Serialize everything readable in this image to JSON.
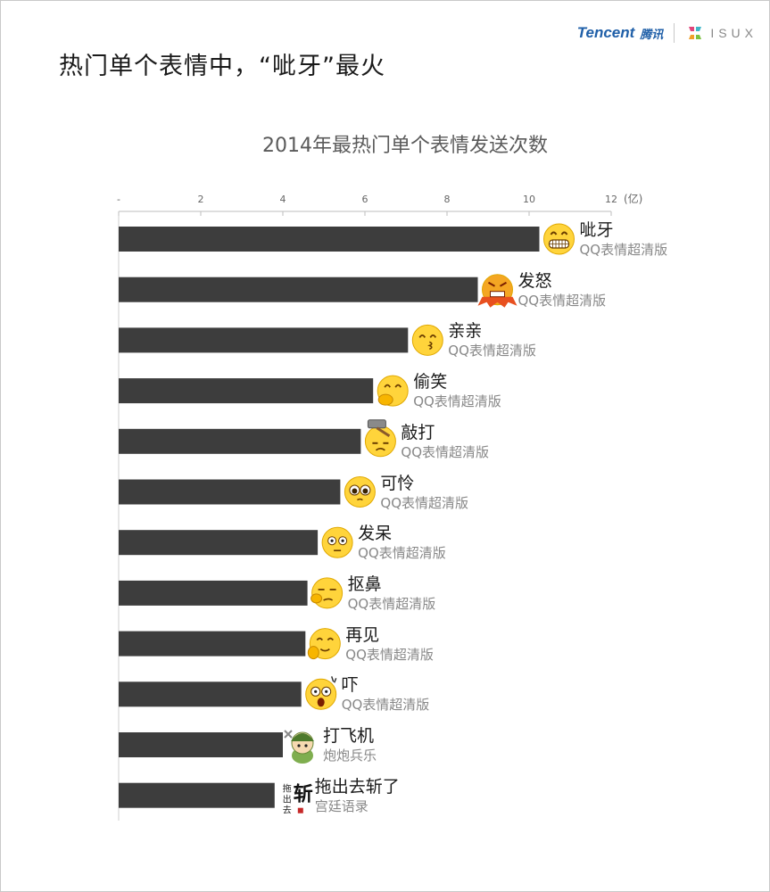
{
  "header": {
    "headline": "热门单个表情中，“呲牙”最火",
    "brand_tencent": "Tencent",
    "brand_tencent_cn": "腾讯",
    "brand_isux": "ISUX"
  },
  "chart_data": {
    "type": "bar",
    "orientation": "horizontal",
    "title": "2014年最热门单个表情发送次数",
    "unit": "(亿)",
    "xlim": [
      0,
      12
    ],
    "ticks": [
      "-",
      "2",
      "4",
      "6",
      "8",
      "10",
      "12"
    ],
    "grid": false,
    "bar_color": "#3d3d3d",
    "categories": [
      "呲牙",
      "发怒",
      "亲亲",
      "偷笑",
      "敲打",
      "可怜",
      "发呆",
      "抠鼻",
      "再见",
      "吓",
      "打飞机",
      "拖出去斩了"
    ],
    "sources": [
      "QQ表情超清版",
      "QQ表情超清版",
      "QQ表情超清版",
      "QQ表情超清版",
      "QQ表情超清版",
      "QQ表情超清版",
      "QQ表情超清版",
      "QQ表情超清版",
      "QQ表情超清版",
      "QQ表情超清版",
      "炮炮兵乐",
      "宫廷语录"
    ],
    "icons": [
      "grin-icon",
      "angry-icon",
      "kiss-icon",
      "snicker-icon",
      "hammer-icon",
      "pitiful-icon",
      "dazed-icon",
      "pick-nose-icon",
      "wave-bye-icon",
      "scared-icon",
      "soldier-icon",
      "calligraphy-icon"
    ],
    "values": [
      10.25,
      8.75,
      7.05,
      6.2,
      5.9,
      5.4,
      4.85,
      4.6,
      4.55,
      4.45,
      4.0,
      3.8
    ]
  }
}
